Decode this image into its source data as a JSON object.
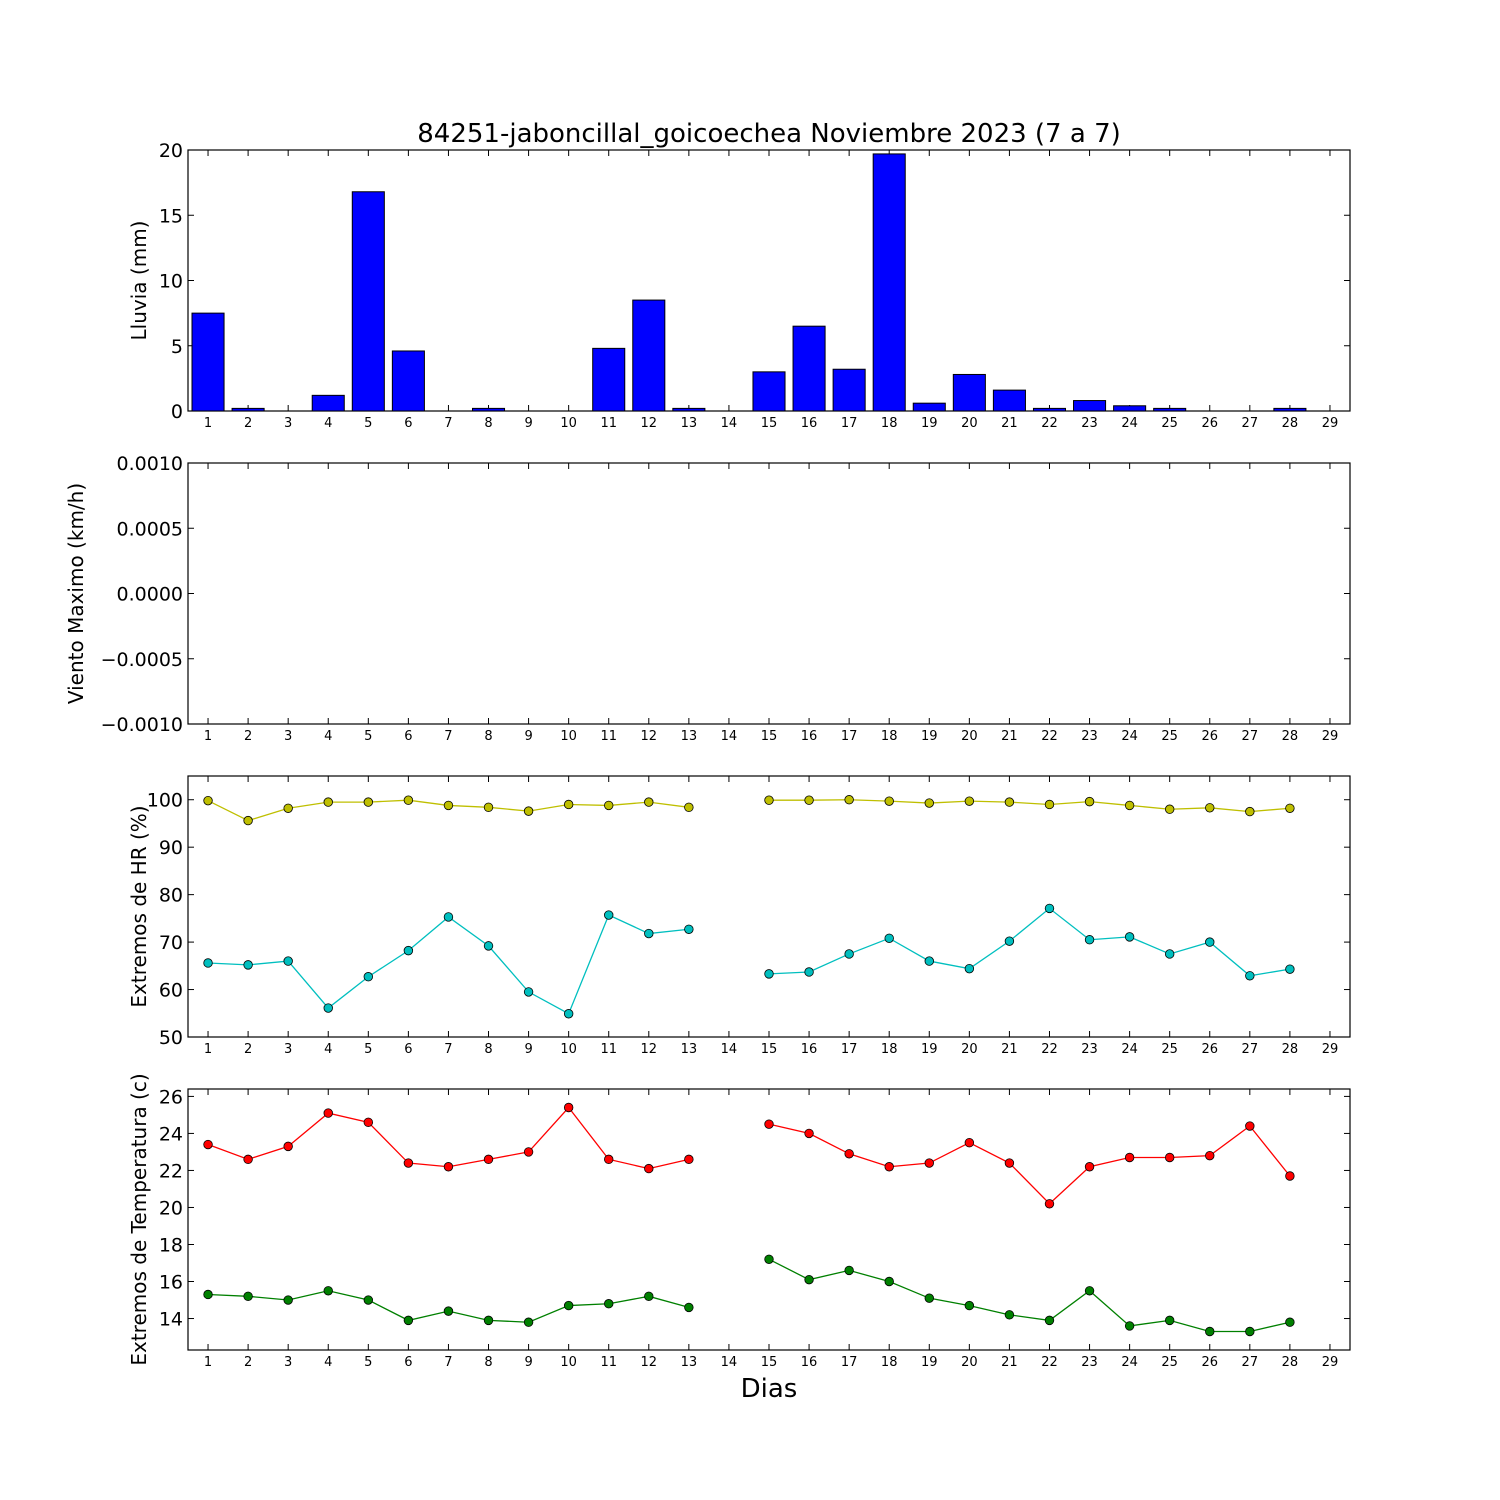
{
  "title": "84251-jaboncillal_goicoechea Noviembre 2023  (7 a 7)",
  "xlabel": "Dias",
  "colors": {
    "bar": "#0000ff",
    "hr_max": "#bfbf00",
    "hr_min": "#00bfbf",
    "t_max": "#ff0000",
    "t_min": "#008000"
  },
  "chart_data": [
    {
      "type": "bar",
      "ylabel": "Lluvia (mm)",
      "xlim": [
        0.5,
        29.5
      ],
      "ylim": [
        0,
        20
      ],
      "yticks": [
        "0",
        "5",
        "10",
        "15",
        "20"
      ],
      "xticks": [
        "1",
        "2",
        "3",
        "4",
        "5",
        "6",
        "7",
        "8",
        "9",
        "10",
        "11",
        "12",
        "13",
        "14",
        "15",
        "16",
        "17",
        "18",
        "19",
        "20",
        "21",
        "22",
        "23",
        "24",
        "25",
        "26",
        "27",
        "28",
        "29"
      ],
      "x": [
        1,
        2,
        3,
        4,
        5,
        6,
        7,
        8,
        9,
        10,
        11,
        12,
        13,
        14,
        15,
        16,
        17,
        18,
        19,
        20,
        21,
        22,
        23,
        24,
        25,
        26,
        27,
        28
      ],
      "values": [
        7.5,
        0.2,
        0,
        1.2,
        16.8,
        4.6,
        0,
        0.2,
        0,
        0,
        4.8,
        8.5,
        0.2,
        0,
        3.0,
        6.5,
        3.2,
        19.7,
        0.6,
        2.8,
        1.6,
        0.2,
        0.8,
        0.4,
        0.2,
        0,
        0,
        0.2
      ]
    },
    {
      "type": "line",
      "ylabel": "Viento Maximo (km/h)",
      "xlim": [
        0.5,
        29.5
      ],
      "ylim": [
        -0.001,
        0.001
      ],
      "yticks": [
        "−0.0010",
        "−0.0005",
        "0.0000",
        "0.0005",
        "0.0010"
      ],
      "xticks": [
        "1",
        "2",
        "3",
        "4",
        "5",
        "6",
        "7",
        "8",
        "9",
        "10",
        "11",
        "12",
        "13",
        "14",
        "15",
        "16",
        "17",
        "18",
        "19",
        "20",
        "21",
        "22",
        "23",
        "24",
        "25",
        "26",
        "27",
        "28",
        "29"
      ],
      "series": []
    },
    {
      "type": "line",
      "ylabel": "Extremos de HR (%)",
      "xlim": [
        0.5,
        29.5
      ],
      "ylim": [
        50,
        105
      ],
      "yticks": [
        "50",
        "60",
        "70",
        "80",
        "90",
        "100"
      ],
      "xticks": [
        "1",
        "2",
        "3",
        "4",
        "5",
        "6",
        "7",
        "8",
        "9",
        "10",
        "11",
        "12",
        "13",
        "14",
        "15",
        "16",
        "17",
        "18",
        "19",
        "20",
        "21",
        "22",
        "23",
        "24",
        "25",
        "26",
        "27",
        "28",
        "29"
      ],
      "x": [
        1,
        2,
        3,
        4,
        5,
        6,
        7,
        8,
        9,
        10,
        11,
        12,
        13,
        14,
        15,
        16,
        17,
        18,
        19,
        20,
        21,
        22,
        23,
        24,
        25,
        26,
        27,
        28
      ],
      "series": [
        {
          "key": "hr_max",
          "values": [
            99.8,
            95.6,
            98.2,
            99.5,
            99.5,
            99.9,
            98.8,
            98.4,
            97.6,
            99.0,
            98.8,
            99.5,
            98.4,
            null,
            99.9,
            99.9,
            100.0,
            99.7,
            99.3,
            99.7,
            99.5,
            99.0,
            99.6,
            98.8,
            98.0,
            98.3,
            97.5,
            98.2
          ]
        },
        {
          "key": "hr_min",
          "values": [
            65.6,
            65.2,
            66.0,
            56.1,
            62.7,
            68.2,
            75.3,
            69.2,
            59.5,
            54.9,
            75.7,
            71.8,
            72.7,
            null,
            63.3,
            63.7,
            67.5,
            70.8,
            66.0,
            64.4,
            70.2,
            77.1,
            70.5,
            71.1,
            67.5,
            70.0,
            62.9,
            64.3
          ]
        }
      ]
    },
    {
      "type": "line",
      "ylabel": "Extremos de Temperatura (c)",
      "xlim": [
        0.5,
        29.5
      ],
      "ylim": [
        12.3,
        26.4
      ],
      "yticks": [
        "14",
        "16",
        "18",
        "20",
        "22",
        "24",
        "26"
      ],
      "xticks": [
        "1",
        "2",
        "3",
        "4",
        "5",
        "6",
        "7",
        "8",
        "9",
        "10",
        "11",
        "12",
        "13",
        "14",
        "15",
        "16",
        "17",
        "18",
        "19",
        "20",
        "21",
        "22",
        "23",
        "24",
        "25",
        "26",
        "27",
        "28",
        "29"
      ],
      "x": [
        1,
        2,
        3,
        4,
        5,
        6,
        7,
        8,
        9,
        10,
        11,
        12,
        13,
        14,
        15,
        16,
        17,
        18,
        19,
        20,
        21,
        22,
        23,
        24,
        25,
        26,
        27,
        28
      ],
      "series": [
        {
          "key": "t_max",
          "values": [
            23.4,
            22.6,
            23.3,
            25.1,
            24.6,
            22.4,
            22.2,
            22.6,
            23.0,
            25.4,
            22.6,
            22.1,
            22.6,
            null,
            24.5,
            24.0,
            22.9,
            22.2,
            22.4,
            23.5,
            22.4,
            20.2,
            22.2,
            22.7,
            22.7,
            22.8,
            24.4,
            21.7
          ]
        },
        {
          "key": "t_min",
          "values": [
            15.3,
            15.2,
            15.0,
            15.5,
            15.0,
            13.9,
            14.4,
            13.9,
            13.8,
            14.7,
            14.8,
            15.2,
            14.6,
            null,
            17.2,
            16.1,
            16.6,
            16.0,
            15.1,
            14.7,
            14.2,
            13.9,
            15.5,
            13.6,
            13.9,
            13.3,
            13.3,
            13.8
          ]
        }
      ]
    }
  ]
}
